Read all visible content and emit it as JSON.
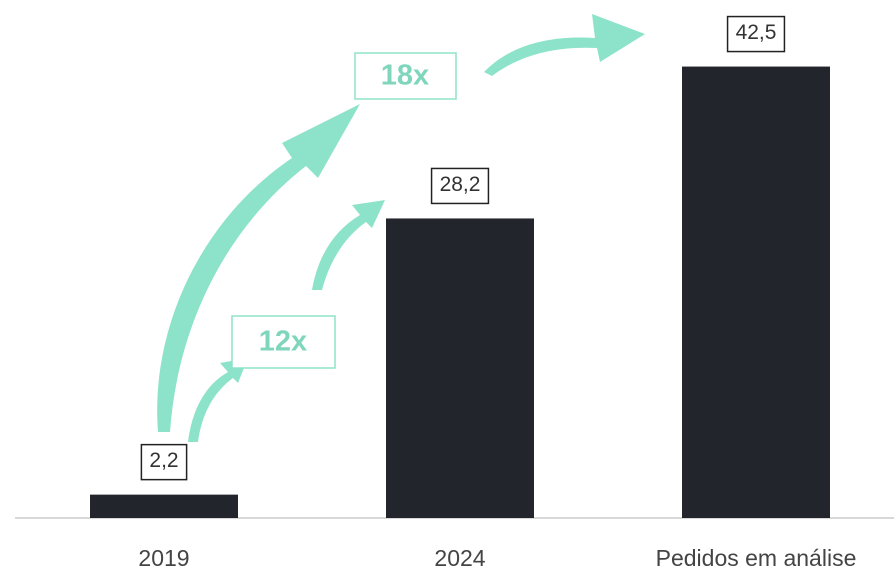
{
  "chart_data": {
    "type": "bar",
    "categories": [
      "2019",
      "2024",
      "Pedidos em análise"
    ],
    "values": [
      2.2,
      28.2,
      42.5
    ],
    "value_labels": [
      "2,2",
      "28,2",
      "42,5"
    ],
    "color": "#22252b",
    "ylim": [
      0,
      45
    ],
    "annotations": [
      "12x",
      "18x"
    ]
  }
}
